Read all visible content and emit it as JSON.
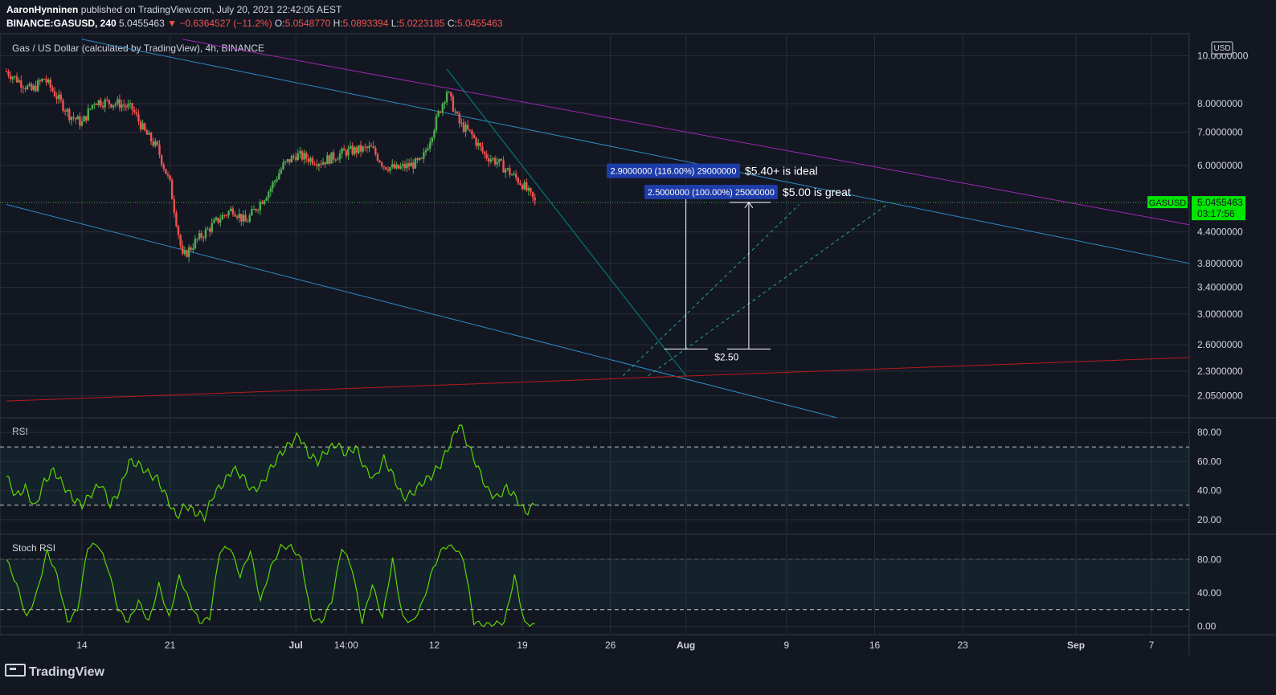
{
  "header": {
    "author": "AaronHynninen",
    "published_text": "published on TradingView.com, July 20, 2021 22:42:05 AEST",
    "symbol": "BINANCE:GASUSD, 240",
    "price": "5.0455463",
    "change": "−0.6364527 (−11.2%)",
    "o_label": "O:",
    "o_value": "5.0548770",
    "h_label": "H:",
    "h_value": "5.0893394",
    "l_label": "L:",
    "l_value": "5.0223185",
    "c_label": "C:",
    "c_value": "5.0455463"
  },
  "footer": {
    "brand": "TradingView"
  },
  "colors": {
    "background": "#131722",
    "grid": "#2a2e39",
    "up": "#26a69a",
    "candle_up": "#4caf50",
    "candle_down": "#ef5350",
    "indicator": "#66ff00",
    "pink": "#e91e63",
    "purple": "#9c27b0",
    "blue_line": "#2196f3",
    "teal_line": "#009688",
    "red_line": "#b71c1c",
    "label_blue": "#1e3ca8"
  },
  "chart_data": [
    {
      "type": "candlestick",
      "title": "Gas / US Dollar (calculated by TradingView), 4h, BINANCE",
      "y_scale": "log",
      "currency": "USD",
      "ylim": [
        1.85,
        11.0
      ],
      "y_ticks": [
        "10.0000000",
        "8.0000000",
        "7.0000000",
        "6.0000000",
        "4.4000000",
        "3.8000000",
        "3.4000000",
        "3.0000000",
        "2.6000000",
        "2.3000000",
        "2.0500000"
      ],
      "y_tick_values": [
        10.0,
        8.0,
        7.0,
        6.0,
        4.4,
        3.8,
        3.4,
        3.0,
        2.6,
        2.3,
        2.05
      ],
      "x_ticks": [
        "14",
        "21",
        "Jul",
        "14:00",
        "12",
        "19",
        "26",
        "Aug",
        "9",
        "16",
        "23",
        "Sep",
        "7"
      ],
      "x_tick_dates": [
        "2021-06-14",
        "2021-06-21",
        "2021-07-01",
        "2021-07-05",
        "2021-07-12",
        "2021-07-19",
        "2021-07-26",
        "2021-08-01",
        "2021-08-09",
        "2021-08-16",
        "2021-08-23",
        "2021-09-01",
        "2021-09-07"
      ],
      "xlim": [
        "2021-06-08",
        "2021-09-10"
      ],
      "price_path": [
        {
          "date": "2021-06-08",
          "close": 9.3
        },
        {
          "date": "2021-06-10",
          "close": 8.5
        },
        {
          "date": "2021-06-11",
          "close": 9.0
        },
        {
          "date": "2021-06-13",
          "close": 7.6
        },
        {
          "date": "2021-06-14",
          "close": 7.3
        },
        {
          "date": "2021-06-15",
          "close": 8.1
        },
        {
          "date": "2021-06-17",
          "close": 8.0
        },
        {
          "date": "2021-06-18",
          "close": 7.8
        },
        {
          "date": "2021-06-19",
          "close": 7.0
        },
        {
          "date": "2021-06-20",
          "close": 6.5
        },
        {
          "date": "2021-06-21",
          "close": 5.5
        },
        {
          "date": "2021-06-22",
          "close": 3.9
        },
        {
          "date": "2021-06-23",
          "close": 4.2
        },
        {
          "date": "2021-06-25",
          "close": 4.7
        },
        {
          "date": "2021-06-26",
          "close": 4.9
        },
        {
          "date": "2021-06-27",
          "close": 4.6
        },
        {
          "date": "2021-06-29",
          "close": 5.4
        },
        {
          "date": "2021-06-30",
          "close": 6.0
        },
        {
          "date": "2021-07-01",
          "close": 6.3
        },
        {
          "date": "2021-07-03",
          "close": 6.1
        },
        {
          "date": "2021-07-05",
          "close": 6.4
        },
        {
          "date": "2021-07-07",
          "close": 6.5
        },
        {
          "date": "2021-07-08",
          "close": 6.0
        },
        {
          "date": "2021-07-09",
          "close": 5.9
        },
        {
          "date": "2021-07-11",
          "close": 6.1
        },
        {
          "date": "2021-07-12",
          "close": 7.2
        },
        {
          "date": "2021-07-13",
          "close": 8.5
        },
        {
          "date": "2021-07-14",
          "close": 7.3
        },
        {
          "date": "2021-07-15",
          "close": 6.9
        },
        {
          "date": "2021-07-16",
          "close": 6.3
        },
        {
          "date": "2021-07-17",
          "close": 6.1
        },
        {
          "date": "2021-07-18",
          "close": 5.8
        },
        {
          "date": "2021-07-19",
          "close": 5.5
        },
        {
          "date": "2021-07-20",
          "close": 5.05
        }
      ],
      "last_price": {
        "label": "GASUSD",
        "value": "5.0455463",
        "countdown": "03:17:56",
        "price": 5.0455463
      },
      "trendlines": [
        {
          "name": "upper-blue",
          "points": [
            [
              "2021-06-14",
              10.8
            ],
            [
              "2021-09-10",
              3.8
            ]
          ]
        },
        {
          "name": "lower-blue",
          "points": [
            [
              "2021-06-08",
              5.0
            ],
            [
              "2021-08-13",
              1.85
            ]
          ]
        },
        {
          "name": "purple",
          "points": [
            [
              "2021-06-22",
              10.8
            ],
            [
              "2021-09-10",
              4.55
            ]
          ]
        },
        {
          "name": "red",
          "points": [
            [
              "2021-06-08",
              2.0
            ],
            [
              "2021-09-10",
              2.45
            ]
          ]
        },
        {
          "name": "teal-drop",
          "points": [
            [
              "2021-07-13",
              9.4
            ],
            [
              "2021-08-01",
              2.25
            ]
          ]
        }
      ],
      "dashed_lines": [
        {
          "name": "dash-1",
          "points": [
            [
              "2021-07-27",
              2.25
            ],
            [
              "2021-08-10",
              5.0
            ]
          ]
        },
        {
          "name": "dash-2",
          "points": [
            [
              "2021-07-29",
              2.25
            ],
            [
              "2021-08-17",
              5.0
            ]
          ]
        }
      ],
      "annotations": [
        {
          "text": "2.9000000 (116.00%) 29000000",
          "date": "2021-07-31",
          "price": 5.85,
          "note": "$5.40+ is ideal"
        },
        {
          "text": "2.5000000 (100.00%) 25000000",
          "date": "2021-08-03",
          "price": 5.3,
          "note": "$5.00 is great"
        },
        {
          "text": "$2.50",
          "date": "2021-08-02",
          "price": 2.5
        }
      ],
      "measures": [
        {
          "date": "2021-08-01",
          "from": 2.55,
          "to": 5.4
        },
        {
          "date": "2021-08-06",
          "from": 2.55,
          "to": 5.05
        }
      ]
    },
    {
      "type": "line",
      "title": "RSI",
      "ylim": [
        10,
        90
      ],
      "y_ticks": [
        "80.00",
        "60.00",
        "40.00",
        "20.00"
      ],
      "bands": [
        30,
        70
      ],
      "series": [
        {
          "values": [
            50,
            36,
            42,
            28,
            46,
            54,
            44,
            35,
            30,
            38,
            45,
            30,
            40,
            60,
            58,
            52,
            48,
            35,
            22,
            30,
            25,
            22,
            38,
            45,
            55,
            50,
            40,
            44,
            55,
            65,
            72,
            78,
            65,
            60,
            68,
            72,
            65,
            70,
            55,
            48,
            62,
            50,
            35,
            38,
            45,
            50,
            58,
            72,
            86,
            70,
            55,
            40,
            35,
            42,
            35,
            25,
            30
          ]
        }
      ]
    },
    {
      "type": "line",
      "title": "Stoch RSI",
      "ylim": [
        -10,
        110
      ],
      "y_ticks": [
        "80.00",
        "40.00",
        "0.00"
      ],
      "bands": [
        20,
        80
      ],
      "series": [
        {
          "values": [
            80,
            50,
            10,
            40,
            90,
            60,
            5,
            20,
            95,
            98,
            70,
            20,
            5,
            30,
            5,
            50,
            10,
            60,
            30,
            5,
            10,
            90,
            95,
            60,
            90,
            30,
            70,
            95,
            95,
            80,
            10,
            5,
            30,
            95,
            70,
            5,
            50,
            10,
            80,
            10,
            5,
            30,
            70,
            95,
            95,
            80,
            5,
            2,
            3,
            5,
            60,
            3,
            3
          ]
        }
      ]
    }
  ]
}
